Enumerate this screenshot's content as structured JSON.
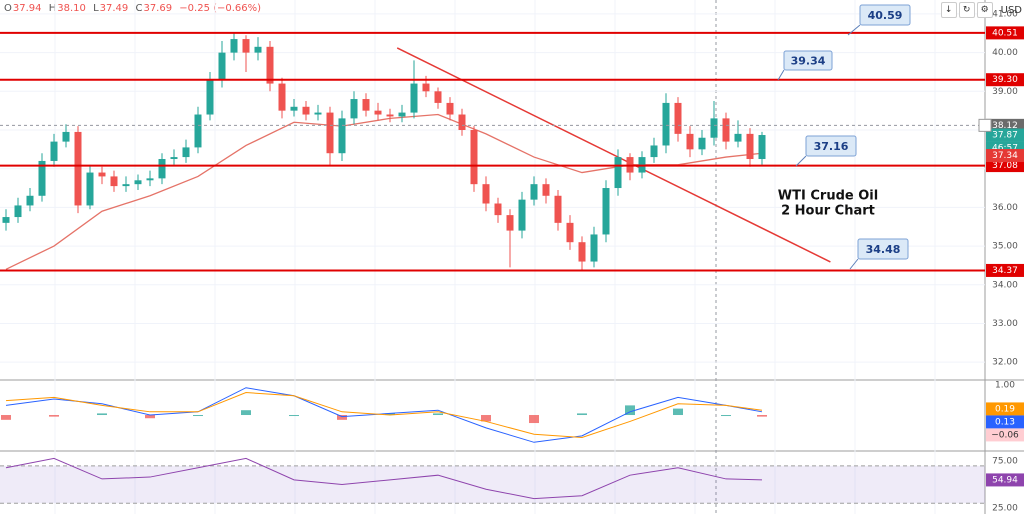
{
  "header": {
    "legend": [
      "O",
      "37.94",
      "H",
      "38.10",
      "L",
      "37.49",
      "C",
      "37.69",
      "−0.25 (−0.66%)"
    ],
    "currency": "USD"
  },
  "chart_data": [
    {
      "type": "candlestick",
      "title": "WTI Crude Oil",
      "subtitle": "2 Hour Chart",
      "open": [
        35.6,
        35.75,
        36.05,
        36.3,
        37.2,
        37.7,
        37.95,
        36.05,
        36.9,
        36.8,
        36.55,
        36.6,
        36.7,
        36.75,
        37.25,
        37.3,
        37.55,
        38.4,
        39.3,
        40.0,
        40.35,
        40.0,
        40.15,
        39.2,
        38.5,
        38.6,
        38.4,
        38.45,
        37.4,
        38.3,
        38.8,
        38.5,
        38.4,
        38.35,
        38.45,
        39.2,
        39.0,
        38.7,
        38.4,
        38.0,
        36.6,
        36.1,
        35.8,
        35.4,
        36.2,
        36.6,
        36.3,
        35.6,
        35.1,
        34.6,
        35.3,
        36.5,
        37.3,
        36.9,
        37.3,
        37.6,
        38.7,
        37.9,
        37.5,
        37.8,
        38.3,
        37.7,
        37.9,
        37.25
      ],
      "high": [
        35.95,
        36.25,
        36.5,
        37.4,
        37.9,
        38.15,
        38.1,
        37.1,
        37.05,
        36.95,
        36.8,
        36.85,
        36.95,
        37.4,
        37.5,
        37.75,
        38.6,
        39.5,
        40.3,
        40.51,
        40.45,
        40.4,
        40.3,
        39.35,
        38.8,
        38.75,
        38.65,
        38.6,
        38.5,
        39.0,
        38.95,
        38.7,
        38.55,
        38.65,
        39.8,
        39.4,
        39.1,
        38.85,
        38.55,
        38.1,
        36.8,
        36.25,
        35.95,
        36.4,
        36.8,
        36.75,
        36.45,
        35.8,
        35.25,
        35.5,
        36.7,
        37.5,
        37.4,
        37.45,
        37.8,
        38.95,
        38.85,
        38.1,
        38.0,
        38.75,
        38.45,
        38.25,
        38.05,
        37.95
      ],
      "low": [
        35.4,
        35.6,
        35.9,
        36.15,
        37.05,
        37.55,
        35.85,
        35.95,
        36.6,
        36.4,
        36.4,
        36.45,
        36.55,
        36.6,
        37.1,
        37.15,
        37.4,
        38.25,
        39.1,
        39.8,
        39.5,
        39.8,
        39.0,
        38.3,
        38.35,
        38.25,
        38.25,
        37.1,
        37.2,
        38.15,
        38.35,
        38.25,
        38.2,
        38.2,
        38.3,
        38.85,
        38.55,
        38.25,
        37.85,
        36.4,
        35.9,
        35.6,
        34.45,
        35.2,
        36.05,
        36.1,
        35.4,
        34.9,
        34.37,
        34.45,
        35.1,
        36.3,
        36.7,
        36.75,
        37.15,
        37.4,
        37.7,
        37.3,
        37.35,
        37.6,
        37.5,
        37.55,
        37.05,
        37.1
      ],
      "close": [
        35.75,
        36.05,
        36.3,
        37.2,
        37.7,
        37.95,
        36.05,
        36.9,
        36.8,
        36.55,
        36.6,
        36.7,
        36.75,
        37.25,
        37.3,
        37.55,
        38.4,
        39.3,
        40.0,
        40.35,
        40.0,
        40.15,
        39.2,
        38.5,
        38.6,
        38.4,
        38.45,
        37.4,
        38.3,
        38.8,
        38.5,
        38.4,
        38.35,
        38.45,
        39.2,
        39.0,
        38.7,
        38.4,
        38.0,
        36.6,
        36.1,
        35.8,
        35.4,
        36.2,
        36.6,
        36.3,
        35.6,
        35.1,
        34.6,
        35.3,
        36.5,
        37.3,
        36.9,
        37.3,
        37.6,
        38.7,
        37.9,
        37.5,
        37.8,
        38.3,
        37.7,
        37.9,
        37.25,
        37.87
      ],
      "up_color": "#26a69a",
      "down_color": "#ef5350",
      "ylim": [
        31.59,
        41.36
      ],
      "yticks": [
        {
          "value": 41,
          "label": "41.00"
        },
        {
          "value": 40,
          "label": "40.00"
        },
        {
          "value": 39,
          "label": "39.00"
        },
        {
          "value": 38,
          "label": "38.00"
        },
        {
          "value": 37,
          "label": "37.00"
        },
        {
          "value": 36,
          "label": "36.00"
        },
        {
          "value": 35,
          "label": "35.00"
        },
        {
          "value": 34,
          "label": "34.00"
        },
        {
          "value": 33,
          "label": "33.00"
        },
        {
          "value": 32,
          "label": "32.00"
        }
      ],
      "grid": true,
      "levels": [
        {
          "value": 40.51,
          "label": "40.51"
        },
        {
          "value": 39.3,
          "label": "39.30"
        },
        {
          "value": 37.08,
          "label": "37.08"
        },
        {
          "value": 34.37,
          "label": "34.37"
        }
      ],
      "level_color": "#e00000",
      "callouts": [
        40.59,
        39.34,
        37.16,
        34.48
      ],
      "ma": {
        "x": [
          0,
          4,
          8,
          12,
          16,
          20,
          24,
          28,
          32,
          36,
          40,
          44,
          48,
          52,
          56,
          60,
          63
        ],
        "values": [
          34.4,
          35.0,
          35.9,
          36.3,
          36.8,
          37.6,
          38.2,
          38.1,
          38.3,
          38.4,
          37.9,
          37.3,
          36.9,
          37.1,
          37.1,
          37.3,
          37.4
        ],
        "color": "#e57368"
      },
      "trendline": {
        "x": [
          32.6,
          68.7
        ],
        "values": [
          40.12,
          34.59
        ],
        "color": "#e53935"
      },
      "price_tags": [
        {
          "value": 38.12,
          "label": "38.12",
          "color": "#6b6b6b"
        },
        {
          "value": 37.87,
          "label": "37.87",
          "color": "#26a69a"
        },
        {
          "value": 37.34,
          "label": "37.34",
          "color": "#e53935"
        }
      ],
      "countdown": "46:57"
    },
    {
      "type": "macd",
      "ylim": [
        -1.09,
        1.06
      ],
      "yticks": [
        {
          "value": 1,
          "label": "1.00"
        }
      ],
      "x": [
        0,
        4,
        8,
        12,
        16,
        20,
        24,
        28,
        32,
        36,
        40,
        44,
        48,
        52,
        56,
        60,
        63
      ],
      "macd": [
        0.3,
        0.5,
        0.35,
        0.0,
        0.1,
        0.85,
        0.6,
        -0.05,
        0.05,
        0.15,
        -0.4,
        -0.85,
        -0.65,
        0.1,
        0.55,
        0.3,
        0.1
      ],
      "signal": [
        0.45,
        0.55,
        0.3,
        0.1,
        0.1,
        0.7,
        0.6,
        0.1,
        0.0,
        0.1,
        -0.2,
        -0.6,
        -0.7,
        -0.2,
        0.35,
        0.3,
        0.15
      ],
      "histogram": [
        -0.15,
        -0.05,
        0.05,
        -0.1,
        0,
        0.15,
        0,
        -0.15,
        0.05,
        0.05,
        -0.2,
        -0.25,
        0.05,
        0.3,
        0.2,
        0,
        -0.05
      ],
      "macd_color": "#2962ff",
      "signal_color": "#ff9800",
      "up_color": "#26a69a",
      "down_color": "#ef5350",
      "tags": [
        {
          "value": 0.19,
          "label": "0.19",
          "color": "#ff9800"
        },
        {
          "value": 0.13,
          "label": "0.13",
          "color": "#2962ff"
        },
        {
          "value": -0.06,
          "label": "−0.06",
          "color": "#ffcdd2"
        }
      ]
    },
    {
      "type": "rsi",
      "ylim": [
        18.5,
        84.8
      ],
      "yticks": [
        {
          "value": 75,
          "label": "75.00"
        },
        {
          "value": 25,
          "label": "25.00"
        }
      ],
      "band": [
        30,
        70
      ],
      "x": [
        0,
        4,
        8,
        12,
        16,
        20,
        24,
        28,
        32,
        36,
        40,
        44,
        48,
        52,
        56,
        60,
        63
      ],
      "values": [
        68,
        78,
        56,
        58,
        68,
        78,
        55,
        50,
        55,
        60,
        45,
        35,
        38,
        60,
        68,
        56,
        55
      ],
      "color": "#8e44ad",
      "tags": [
        {
          "value": 54.94,
          "label": "54.94"
        }
      ]
    }
  ]
}
